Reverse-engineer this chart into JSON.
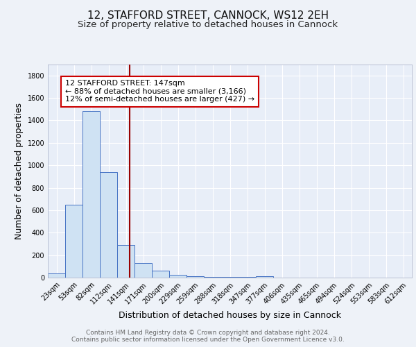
{
  "title_line1": "12, STAFFORD STREET, CANNOCK, WS12 2EH",
  "title_line2": "Size of property relative to detached houses in Cannock",
  "xlabel": "Distribution of detached houses by size in Cannock",
  "ylabel": "Number of detached properties",
  "bin_labels": [
    "23sqm",
    "53sqm",
    "82sqm",
    "112sqm",
    "141sqm",
    "171sqm",
    "200sqm",
    "229sqm",
    "259sqm",
    "288sqm",
    "318sqm",
    "347sqm",
    "377sqm",
    "406sqm",
    "435sqm",
    "465sqm",
    "494sqm",
    "524sqm",
    "553sqm",
    "583sqm",
    "612sqm"
  ],
  "bar_values": [
    38,
    650,
    1480,
    940,
    290,
    130,
    62,
    22,
    10,
    4,
    4,
    4,
    15,
    0,
    0,
    0,
    0,
    0,
    0,
    0,
    0
  ],
  "bar_color": "#cfe2f3",
  "bar_edge_color": "#4472c4",
  "red_line_x": 4.2,
  "red_line_color": "#990000",
  "annotation_text": "12 STAFFORD STREET: 147sqm\n← 88% of detached houses are smaller (3,166)\n12% of semi-detached houses are larger (427) →",
  "annotation_box_facecolor": "#ffffff",
  "annotation_box_edgecolor": "#cc0000",
  "ylim": [
    0,
    1900
  ],
  "yticks": [
    0,
    200,
    400,
    600,
    800,
    1000,
    1200,
    1400,
    1600,
    1800
  ],
  "plot_bg_color": "#e8eef8",
  "fig_bg_color": "#eef2f8",
  "grid_color": "#ffffff",
  "title_fontsize": 11,
  "subtitle_fontsize": 9.5,
  "axis_label_fontsize": 9,
  "tick_fontsize": 7,
  "annotation_fontsize": 8,
  "footer_fontsize": 6.5,
  "footer_text": "Contains HM Land Registry data © Crown copyright and database right 2024.\nContains public sector information licensed under the Open Government Licence v3.0."
}
